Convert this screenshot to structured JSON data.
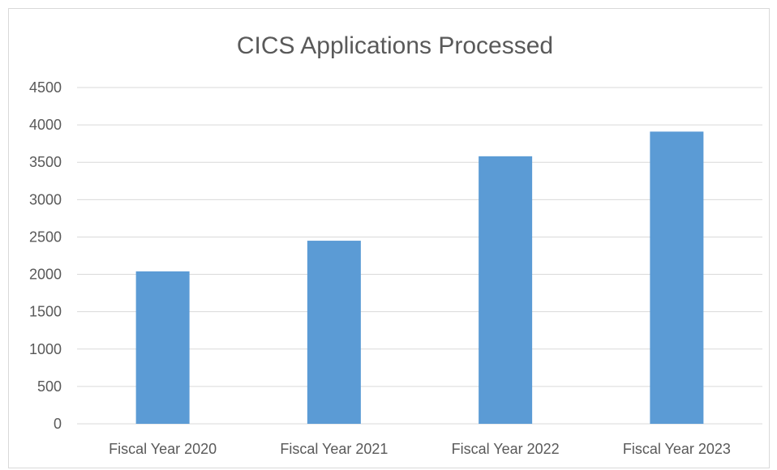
{
  "chart_data": {
    "type": "bar",
    "title": "CICS Applications Processed",
    "xlabel": "",
    "ylabel": "",
    "categories": [
      "Fiscal Year 2020",
      "Fiscal Year 2021",
      "Fiscal Year 2022",
      "Fiscal Year 2023"
    ],
    "values": [
      2040,
      2450,
      3580,
      3910
    ],
    "ylim": [
      0,
      4500
    ],
    "yticks": [
      "0",
      "500",
      "1000",
      "1500",
      "2000",
      "2500",
      "3000",
      "3500",
      "4000",
      "4500"
    ],
    "grid": true,
    "legend": "none",
    "colors": {
      "bar": "#5b9bd5",
      "grid": "#d9d9d9",
      "text": "#595959"
    }
  }
}
